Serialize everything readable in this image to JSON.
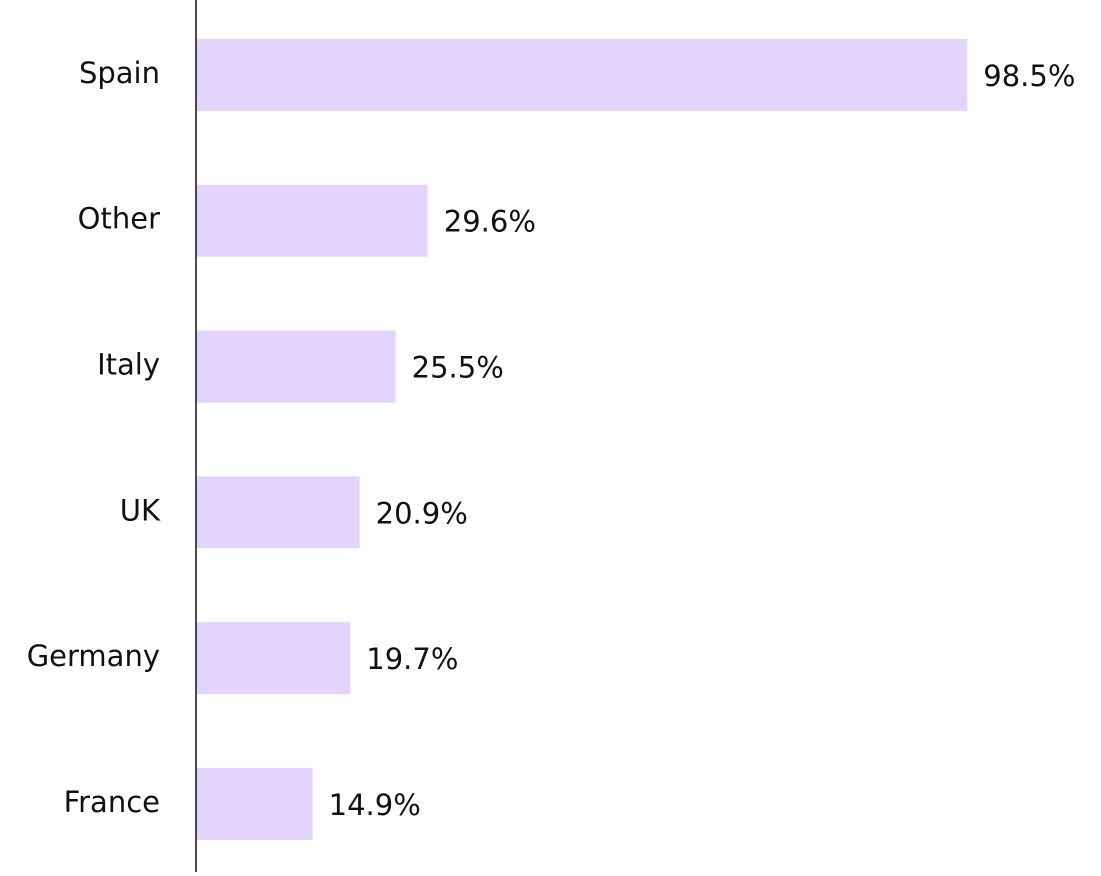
{
  "chart_data": {
    "type": "bar",
    "orientation": "horizontal",
    "categories": [
      "Spain",
      "Other",
      "Italy",
      "UK",
      "Germany",
      "France"
    ],
    "values": [
      98.5,
      29.6,
      25.5,
      20.9,
      19.7,
      14.9
    ],
    "value_labels": [
      "98.5%",
      "29.6%",
      "25.5%",
      "20.9%",
      "19.7%",
      "14.9%"
    ],
    "color": "#e2d4fd",
    "xlim": [
      0,
      100
    ]
  }
}
